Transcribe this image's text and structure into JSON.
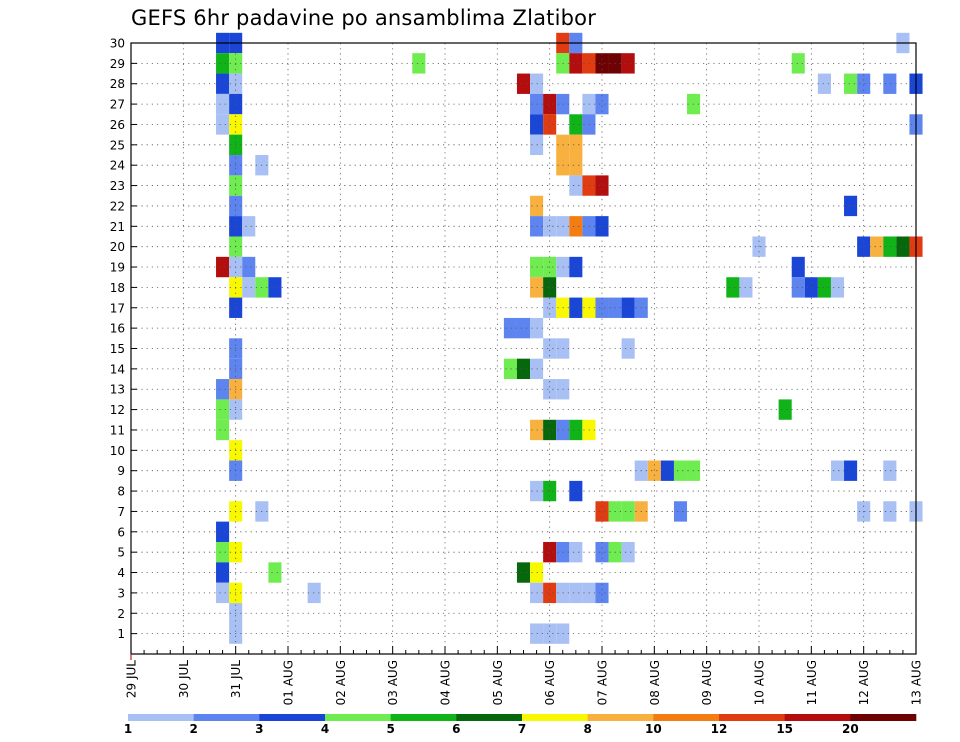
{
  "chart_data": {
    "type": "heatmap",
    "title": "GEFS 6hr padavine po ansamblima Zlatibor",
    "xlabel": "",
    "ylabel": "",
    "x_tick_labels": [
      "29 JUL",
      "30 JUL",
      "31 JUL",
      "01 AUG",
      "02 AUG",
      "03 AUG",
      "04 AUG",
      "05 AUG",
      "06 AUG",
      "07 AUG",
      "08 AUG",
      "09 AUG",
      "10 AUG",
      "11 AUG",
      "12 AUG",
      "13 AUG"
    ],
    "y_tick_labels": [
      "1",
      "2",
      "3",
      "4",
      "5",
      "6",
      "7",
      "8",
      "9",
      "10",
      "11",
      "12",
      "13",
      "14",
      "15",
      "16",
      "17",
      "18",
      "19",
      "20",
      "21",
      "22",
      "23",
      "24",
      "25",
      "26",
      "27",
      "28",
      "29",
      "30"
    ],
    "x_range_steps": [
      0,
      60
    ],
    "y_range": [
      0,
      30
    ],
    "grid": true,
    "legend_placement": "bottom",
    "legend": {
      "labels": [
        "1",
        "2",
        "3",
        "4",
        "5",
        "6",
        "7",
        "8",
        "10",
        "12",
        "15",
        "20"
      ],
      "colors": [
        "#a9c0f4",
        "#5e84ef",
        "#1a46d8",
        "#6fec4f",
        "#11b418",
        "#06670c",
        "#f8f800",
        "#f8b13f",
        "#f47d12",
        "#e03b11",
        "#b30d0d",
        "#6e0202"
      ]
    },
    "cells": [
      {
        "t": 7,
        "m": 30,
        "c": 2
      },
      {
        "t": 8,
        "m": 30,
        "c": 2
      },
      {
        "t": 33,
        "m": 30,
        "c": 9
      },
      {
        "t": 34,
        "m": 30,
        "c": 1
      },
      {
        "t": 59,
        "m": 30,
        "c": 0
      },
      {
        "t": 7,
        "m": 29,
        "c": 4
      },
      {
        "t": 8,
        "m": 29,
        "c": 3
      },
      {
        "t": 22,
        "m": 29,
        "c": 3
      },
      {
        "t": 33,
        "m": 29,
        "c": 3
      },
      {
        "t": 34,
        "m": 29,
        "c": 10
      },
      {
        "t": 35,
        "m": 29,
        "c": 9
      },
      {
        "t": 36,
        "m": 29,
        "c": 11
      },
      {
        "t": 37,
        "m": 29,
        "c": 11
      },
      {
        "t": 38,
        "m": 29,
        "c": 10
      },
      {
        "t": 51,
        "m": 29,
        "c": 3
      },
      {
        "t": 7,
        "m": 28,
        "c": 2
      },
      {
        "t": 8,
        "m": 28,
        "c": 0
      },
      {
        "t": 30,
        "m": 28,
        "c": 10
      },
      {
        "t": 31,
        "m": 28,
        "c": 0
      },
      {
        "t": 53,
        "m": 28,
        "c": 0
      },
      {
        "t": 55,
        "m": 28,
        "c": 3
      },
      {
        "t": 56,
        "m": 28,
        "c": 1
      },
      {
        "t": 58,
        "m": 28,
        "c": 1
      },
      {
        "t": 60,
        "m": 28,
        "c": 2
      },
      {
        "t": 7,
        "m": 27,
        "c": 0
      },
      {
        "t": 8,
        "m": 27,
        "c": 2
      },
      {
        "t": 31,
        "m": 27,
        "c": 1
      },
      {
        "t": 32,
        "m": 27,
        "c": 10
      },
      {
        "t": 33,
        "m": 27,
        "c": 1
      },
      {
        "t": 35,
        "m": 27,
        "c": 0
      },
      {
        "t": 36,
        "m": 27,
        "c": 1
      },
      {
        "t": 43,
        "m": 27,
        "c": 3
      },
      {
        "t": 7,
        "m": 26,
        "c": 0
      },
      {
        "t": 8,
        "m": 26,
        "c": 6
      },
      {
        "t": 31,
        "m": 26,
        "c": 2
      },
      {
        "t": 32,
        "m": 26,
        "c": 9
      },
      {
        "t": 34,
        "m": 26,
        "c": 4
      },
      {
        "t": 35,
        "m": 26,
        "c": 1
      },
      {
        "t": 60,
        "m": 26,
        "c": 1
      },
      {
        "t": 8,
        "m": 25,
        "c": 4
      },
      {
        "t": 31,
        "m": 25,
        "c": 0
      },
      {
        "t": 33,
        "m": 25,
        "c": 7
      },
      {
        "t": 34,
        "m": 25,
        "c": 7
      },
      {
        "t": 8,
        "m": 24,
        "c": 1
      },
      {
        "t": 10,
        "m": 24,
        "c": 0
      },
      {
        "t": 33,
        "m": 24,
        "c": 7
      },
      {
        "t": 34,
        "m": 24,
        "c": 7
      },
      {
        "t": 8,
        "m": 23,
        "c": 3
      },
      {
        "t": 34,
        "m": 23,
        "c": 0
      },
      {
        "t": 35,
        "m": 23,
        "c": 9
      },
      {
        "t": 36,
        "m": 23,
        "c": 10
      },
      {
        "t": 8,
        "m": 22,
        "c": 1
      },
      {
        "t": 31,
        "m": 22,
        "c": 7
      },
      {
        "t": 55,
        "m": 22,
        "c": 2
      },
      {
        "t": 8,
        "m": 21,
        "c": 2
      },
      {
        "t": 9,
        "m": 21,
        "c": 0
      },
      {
        "t": 31,
        "m": 21,
        "c": 1
      },
      {
        "t": 32,
        "m": 21,
        "c": 0
      },
      {
        "t": 33,
        "m": 21,
        "c": 0
      },
      {
        "t": 34,
        "m": 21,
        "c": 8
      },
      {
        "t": 35,
        "m": 21,
        "c": 1
      },
      {
        "t": 36,
        "m": 21,
        "c": 2
      },
      {
        "t": 8,
        "m": 20,
        "c": 3
      },
      {
        "t": 48,
        "m": 20,
        "c": 0
      },
      {
        "t": 56,
        "m": 20,
        "c": 2
      },
      {
        "t": 57,
        "m": 20,
        "c": 7
      },
      {
        "t": 58,
        "m": 20,
        "c": 4
      },
      {
        "t": 59,
        "m": 20,
        "c": 5
      },
      {
        "t": 60,
        "m": 20,
        "c": 9
      },
      {
        "t": 7,
        "m": 19,
        "c": 10
      },
      {
        "t": 8,
        "m": 19,
        "c": 0
      },
      {
        "t": 9,
        "m": 19,
        "c": 1
      },
      {
        "t": 31,
        "m": 19,
        "c": 3
      },
      {
        "t": 32,
        "m": 19,
        "c": 3
      },
      {
        "t": 33,
        "m": 19,
        "c": 0
      },
      {
        "t": 34,
        "m": 19,
        "c": 2
      },
      {
        "t": 51,
        "m": 19,
        "c": 2
      },
      {
        "t": 8,
        "m": 18,
        "c": 6
      },
      {
        "t": 9,
        "m": 18,
        "c": 0
      },
      {
        "t": 10,
        "m": 18,
        "c": 3
      },
      {
        "t": 11,
        "m": 18,
        "c": 2
      },
      {
        "t": 31,
        "m": 18,
        "c": 7
      },
      {
        "t": 32,
        "m": 18,
        "c": 5
      },
      {
        "t": 46,
        "m": 18,
        "c": 4
      },
      {
        "t": 47,
        "m": 18,
        "c": 0
      },
      {
        "t": 51,
        "m": 18,
        "c": 1
      },
      {
        "t": 52,
        "m": 18,
        "c": 2
      },
      {
        "t": 53,
        "m": 18,
        "c": 4
      },
      {
        "t": 54,
        "m": 18,
        "c": 0
      },
      {
        "t": 8,
        "m": 17,
        "c": 2
      },
      {
        "t": 32,
        "m": 17,
        "c": 0
      },
      {
        "t": 33,
        "m": 17,
        "c": 6
      },
      {
        "t": 34,
        "m": 17,
        "c": 2
      },
      {
        "t": 35,
        "m": 17,
        "c": 6
      },
      {
        "t": 36,
        "m": 17,
        "c": 1
      },
      {
        "t": 37,
        "m": 17,
        "c": 1
      },
      {
        "t": 38,
        "m": 17,
        "c": 2
      },
      {
        "t": 39,
        "m": 17,
        "c": 1
      },
      {
        "t": 29,
        "m": 16,
        "c": 1
      },
      {
        "t": 30,
        "m": 16,
        "c": 1
      },
      {
        "t": 31,
        "m": 16,
        "c": 0
      },
      {
        "t": 8,
        "m": 15,
        "c": 1
      },
      {
        "t": 32,
        "m": 15,
        "c": 0
      },
      {
        "t": 33,
        "m": 15,
        "c": 0
      },
      {
        "t": 38,
        "m": 15,
        "c": 0
      },
      {
        "t": 8,
        "m": 14,
        "c": 1
      },
      {
        "t": 29,
        "m": 14,
        "c": 3
      },
      {
        "t": 30,
        "m": 14,
        "c": 5
      },
      {
        "t": 31,
        "m": 14,
        "c": 0
      },
      {
        "t": 7,
        "m": 13,
        "c": 1
      },
      {
        "t": 8,
        "m": 13,
        "c": 7
      },
      {
        "t": 32,
        "m": 13,
        "c": 0
      },
      {
        "t": 33,
        "m": 13,
        "c": 0
      },
      {
        "t": 7,
        "m": 12,
        "c": 3
      },
      {
        "t": 8,
        "m": 12,
        "c": 0
      },
      {
        "t": 50,
        "m": 12,
        "c": 4
      },
      {
        "t": 7,
        "m": 11,
        "c": 3
      },
      {
        "t": 31,
        "m": 11,
        "c": 7
      },
      {
        "t": 32,
        "m": 11,
        "c": 5
      },
      {
        "t": 33,
        "m": 11,
        "c": 1
      },
      {
        "t": 34,
        "m": 11,
        "c": 4
      },
      {
        "t": 35,
        "m": 11,
        "c": 6
      },
      {
        "t": 8,
        "m": 10,
        "c": 6
      },
      {
        "t": 8,
        "m": 9,
        "c": 1
      },
      {
        "t": 39,
        "m": 9,
        "c": 0
      },
      {
        "t": 40,
        "m": 9,
        "c": 7
      },
      {
        "t": 41,
        "m": 9,
        "c": 2
      },
      {
        "t": 42,
        "m": 9,
        "c": 3
      },
      {
        "t": 43,
        "m": 9,
        "c": 3
      },
      {
        "t": 54,
        "m": 9,
        "c": 0
      },
      {
        "t": 55,
        "m": 9,
        "c": 2
      },
      {
        "t": 58,
        "m": 9,
        "c": 0
      },
      {
        "t": 31,
        "m": 8,
        "c": 0
      },
      {
        "t": 32,
        "m": 8,
        "c": 4
      },
      {
        "t": 34,
        "m": 8,
        "c": 2
      },
      {
        "t": 8,
        "m": 7,
        "c": 6
      },
      {
        "t": 10,
        "m": 7,
        "c": 0
      },
      {
        "t": 36,
        "m": 7,
        "c": 9
      },
      {
        "t": 37,
        "m": 7,
        "c": 3
      },
      {
        "t": 38,
        "m": 7,
        "c": 3
      },
      {
        "t": 39,
        "m": 7,
        "c": 7
      },
      {
        "t": 42,
        "m": 7,
        "c": 1
      },
      {
        "t": 56,
        "m": 7,
        "c": 0
      },
      {
        "t": 58,
        "m": 7,
        "c": 0
      },
      {
        "t": 60,
        "m": 7,
        "c": 0
      },
      {
        "t": 7,
        "m": 6,
        "c": 2
      },
      {
        "t": 7,
        "m": 5,
        "c": 3
      },
      {
        "t": 8,
        "m": 5,
        "c": 6
      },
      {
        "t": 32,
        "m": 5,
        "c": 10
      },
      {
        "t": 33,
        "m": 5,
        "c": 1
      },
      {
        "t": 34,
        "m": 5,
        "c": 0
      },
      {
        "t": 36,
        "m": 5,
        "c": 1
      },
      {
        "t": 37,
        "m": 5,
        "c": 3
      },
      {
        "t": 38,
        "m": 5,
        "c": 0
      },
      {
        "t": 7,
        "m": 4,
        "c": 2
      },
      {
        "t": 11,
        "m": 4,
        "c": 3
      },
      {
        "t": 30,
        "m": 4,
        "c": 5
      },
      {
        "t": 31,
        "m": 4,
        "c": 6
      },
      {
        "t": 7,
        "m": 3,
        "c": 0
      },
      {
        "t": 8,
        "m": 3,
        "c": 6
      },
      {
        "t": 14,
        "m": 3,
        "c": 0
      },
      {
        "t": 31,
        "m": 3,
        "c": 0
      },
      {
        "t": 32,
        "m": 3,
        "c": 9
      },
      {
        "t": 33,
        "m": 3,
        "c": 0
      },
      {
        "t": 34,
        "m": 3,
        "c": 0
      },
      {
        "t": 35,
        "m": 3,
        "c": 0
      },
      {
        "t": 36,
        "m": 3,
        "c": 1
      },
      {
        "t": 8,
        "m": 2,
        "c": 0
      },
      {
        "t": 8,
        "m": 1,
        "c": 0
      },
      {
        "t": 31,
        "m": 1,
        "c": 0
      },
      {
        "t": 32,
        "m": 1,
        "c": 0
      },
      {
        "t": 33,
        "m": 1,
        "c": 0
      }
    ]
  }
}
